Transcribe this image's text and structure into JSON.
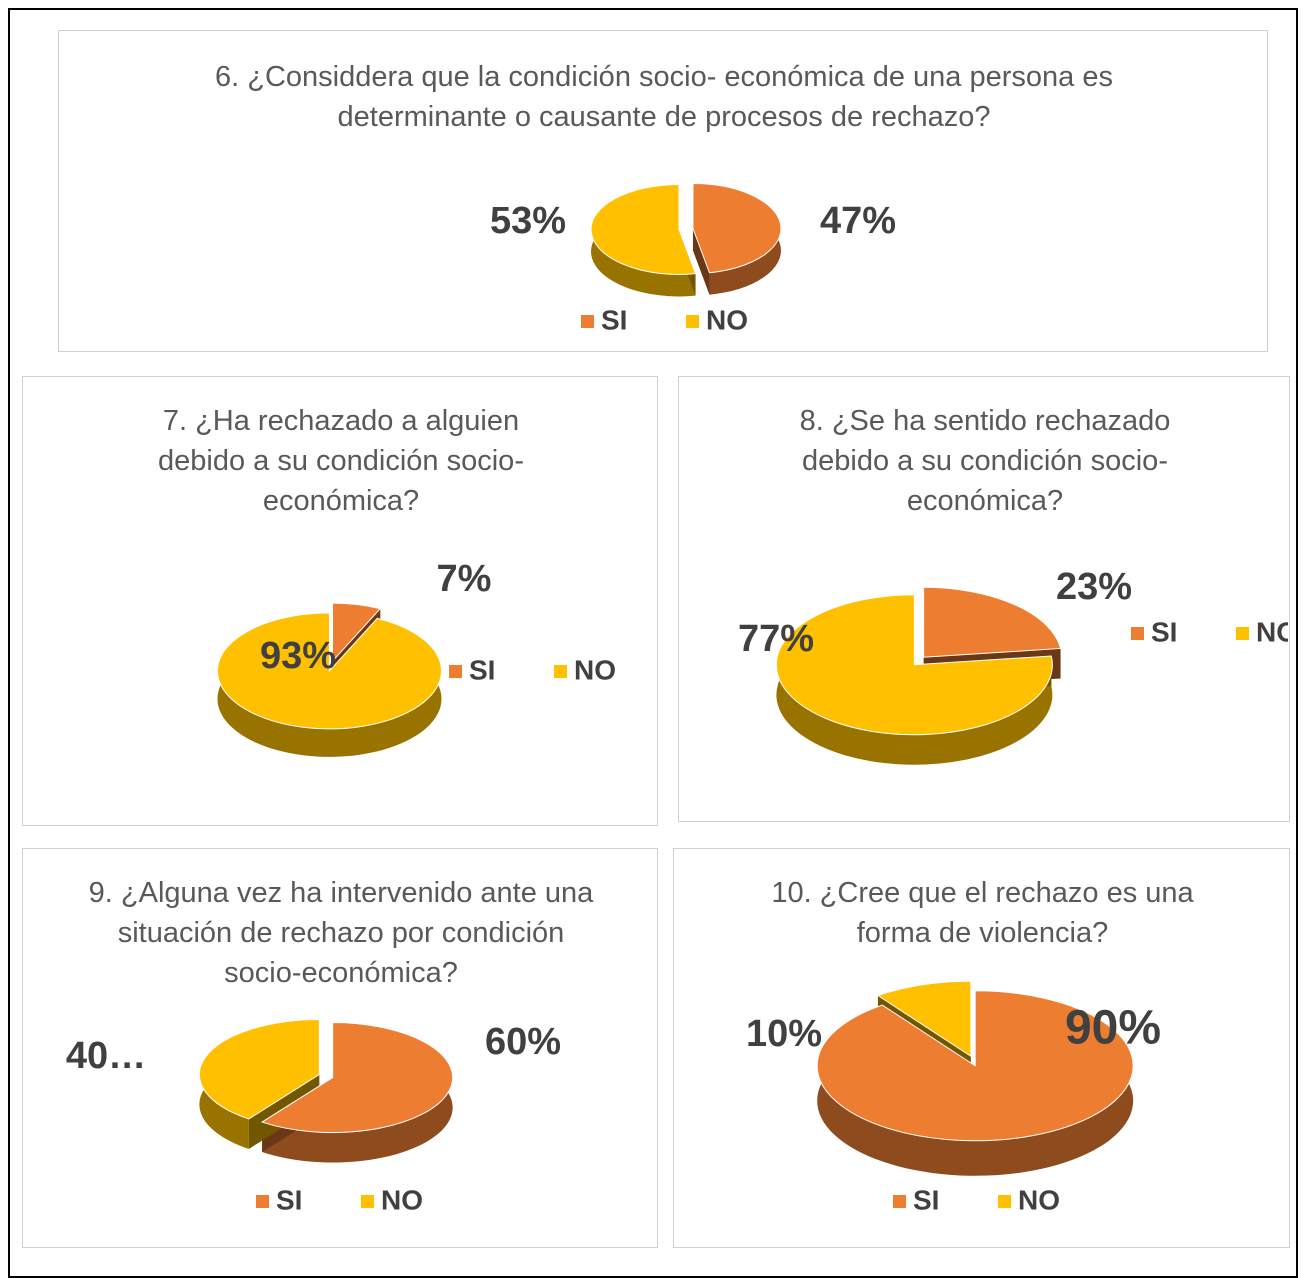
{
  "chart_data": [
    {
      "type": "pie",
      "title": "6. ¿Considdera que la condición socio- económica de una persona es determinante o causante de procesos de rechazo?",
      "categories": [
        "SI",
        "NO"
      ],
      "values": [
        47,
        53
      ],
      "value_labels": [
        "47%",
        "53%"
      ],
      "colors": [
        "#ed7d31",
        "#ffc000"
      ],
      "legend": "bottom"
    },
    {
      "type": "pie",
      "title": "7. ¿Ha rechazado a alguien debido a su condición socio-económica?",
      "categories": [
        "SI",
        "NO"
      ],
      "values": [
        7,
        93
      ],
      "value_labels": [
        "7%",
        "93%"
      ],
      "colors": [
        "#ed7d31",
        "#ffc000"
      ],
      "legend": "right"
    },
    {
      "type": "pie",
      "title": "8. ¿Se ha sentido rechazado debido a su condición socio-económica?",
      "categories": [
        "SI",
        "NO"
      ],
      "values": [
        23,
        77
      ],
      "value_labels": [
        "23%",
        "77%"
      ],
      "colors": [
        "#ed7d31",
        "#ffc000"
      ],
      "legend": "right"
    },
    {
      "type": "pie",
      "title": "9. ¿Alguna vez ha intervenido ante una situación de rechazo por condición socio-económica?",
      "categories": [
        "SI",
        "NO"
      ],
      "values": [
        60,
        40
      ],
      "value_labels": [
        "60%",
        "40…"
      ],
      "colors": [
        "#ed7d31",
        "#ffc000"
      ],
      "legend": "bottom"
    },
    {
      "type": "pie",
      "title": "10. ¿Cree que el rechazo es una forma de violencia?",
      "categories": [
        "SI",
        "NO"
      ],
      "values": [
        90,
        10
      ],
      "value_labels": [
        "90%",
        "10%"
      ],
      "colors": [
        "#ed7d31",
        "#ffc000"
      ],
      "legend": "bottom"
    }
  ]
}
